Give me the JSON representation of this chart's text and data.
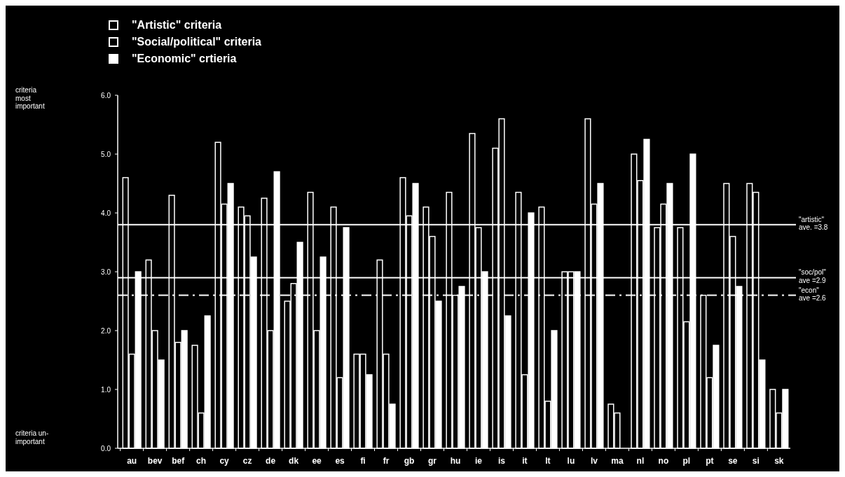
{
  "chart_data": {
    "type": "bar",
    "categories": [
      "au",
      "bev",
      "bef",
      "ch",
      "cy",
      "cz",
      "de",
      "dk",
      "ee",
      "es",
      "fi",
      "fr",
      "gb",
      "gr",
      "hu",
      "ie",
      "is",
      "it",
      "lt",
      "lu",
      "lv",
      "ma",
      "nl",
      "no",
      "pl",
      "pt",
      "se",
      "si",
      "sk"
    ],
    "series": [
      {
        "name": "\"Artistic\" criteria",
        "color": "#000000",
        "values": [
          4.6,
          3.2,
          4.3,
          1.75,
          5.2,
          4.1,
          4.25,
          2.5,
          4.35,
          4.1,
          1.6,
          3.2,
          4.6,
          4.1,
          4.35,
          5.35,
          5.1,
          4.35,
          4.1,
          3.0,
          5.6,
          0.75,
          5.0,
          3.75,
          3.75,
          2.6,
          4.5,
          4.5,
          1.0
        ]
      },
      {
        "name": "\"Social/political\" criteria",
        "color": "#000000",
        "values": [
          1.6,
          2.0,
          1.8,
          0.6,
          4.15,
          3.95,
          2.0,
          2.8,
          2.0,
          1.2,
          1.6,
          1.6,
          3.95,
          3.6,
          2.6,
          3.75,
          5.6,
          1.25,
          0.8,
          3.0,
          4.15,
          0.6,
          4.55,
          4.15,
          2.15,
          1.2,
          3.6,
          4.35,
          0.6
        ]
      },
      {
        "name": "\"Economic\" crtieria",
        "color": "#ffffff",
        "values": [
          3.0,
          1.5,
          2.0,
          2.25,
          4.5,
          3.25,
          4.7,
          3.5,
          3.25,
          3.75,
          1.25,
          0.75,
          4.5,
          2.5,
          2.75,
          3.0,
          2.25,
          4.0,
          2.0,
          3.0,
          4.5,
          null,
          5.25,
          4.5,
          5.0,
          1.75,
          2.75,
          1.5,
          1.0
        ]
      }
    ],
    "ylim": [
      0,
      6
    ],
    "yticks": [
      {
        "value": 0,
        "label": "0.0"
      },
      {
        "value": 1,
        "label": "1.0"
      },
      {
        "value": 2,
        "label": "2.0"
      },
      {
        "value": 3,
        "label": "3.0"
      },
      {
        "value": 4,
        "label": "4.0"
      },
      {
        "value": 5,
        "label": "5.0"
      },
      {
        "value": 6,
        "label": "6.0"
      }
    ],
    "ref_lines": [
      {
        "axis": "y",
        "value": 3.8,
        "label": "\"artistic\"\nave. =3.8",
        "color": "#ffffff",
        "line_style": "solid"
      },
      {
        "axis": "y",
        "value": 2.9,
        "label": "\"soc/pol\"\nave  =2.9",
        "color": "#ffffff",
        "line_style": "solid"
      },
      {
        "axis": "y",
        "value": 2.6,
        "label": "\"econ\"\nave  =2.6",
        "color": "#ffffff",
        "line_style": "dashed"
      }
    ],
    "annotations": [
      "criteria\nmost\nimportant",
      "criteria un-\nimportant"
    ],
    "legend": "top left",
    "grid": false
  }
}
